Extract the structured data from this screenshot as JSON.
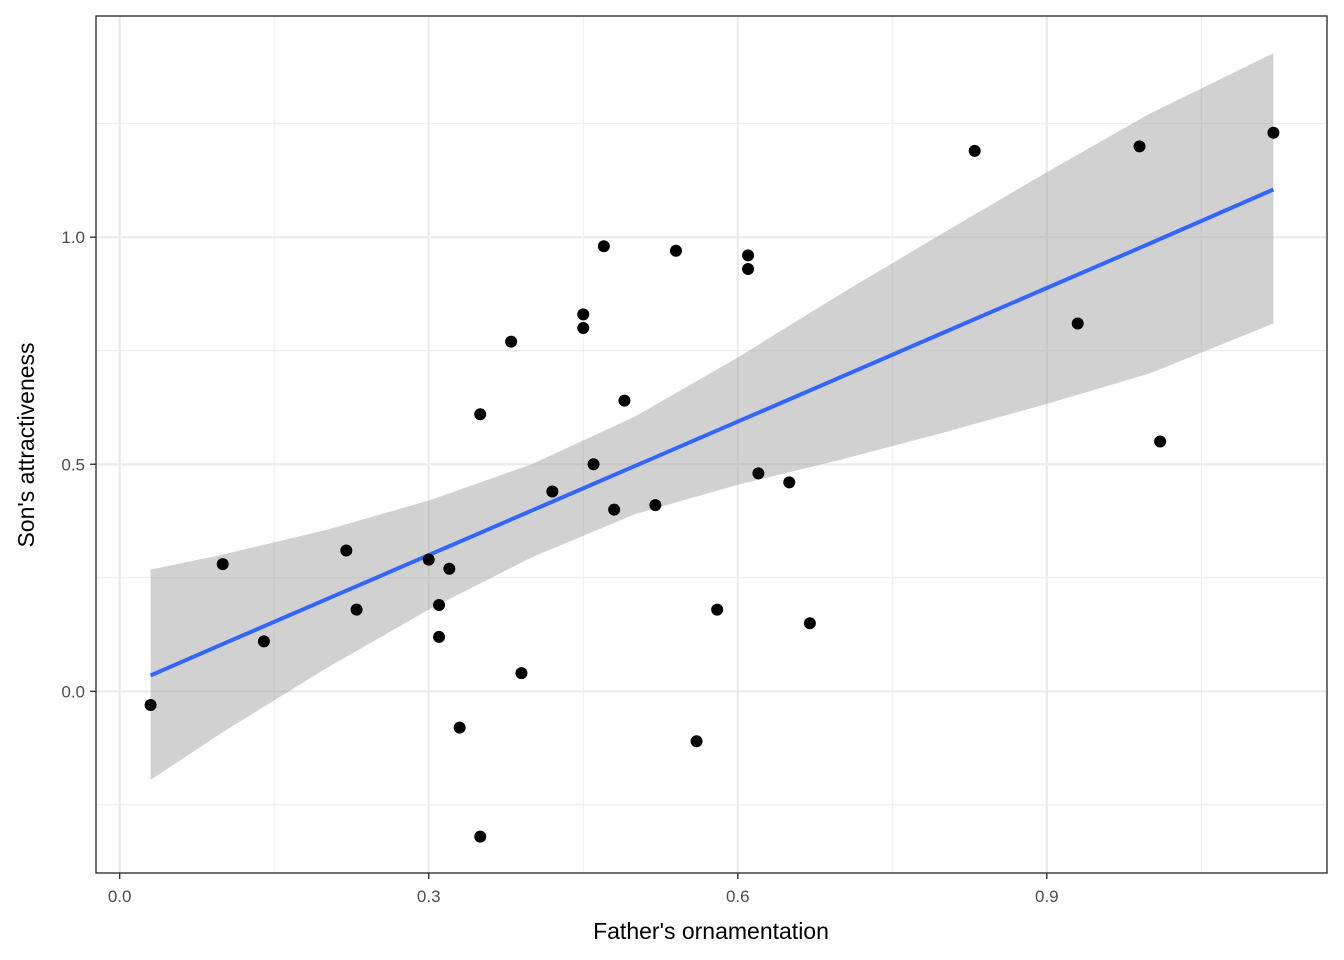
{
  "chart_data": {
    "type": "scatter",
    "title": "",
    "xlabel": "Father's ornamentation",
    "ylabel": "Son's attractiveness",
    "xlim": [
      -0.023,
      1.172
    ],
    "ylim": [
      -0.4,
      1.487
    ],
    "x_ticks": [
      0.0,
      0.3,
      0.6,
      0.9
    ],
    "x_tick_labels": [
      "0.0",
      "0.3",
      "0.6",
      "0.9"
    ],
    "x_minor": [
      0.15,
      0.45,
      0.75,
      1.05
    ],
    "y_ticks": [
      0.0,
      0.5,
      1.0
    ],
    "y_tick_labels": [
      "0.0",
      "0.5",
      "1.0"
    ],
    "y_minor": [
      -0.25,
      0.25,
      0.75,
      1.25
    ],
    "grid": true,
    "legend": "none",
    "points": [
      {
        "x": 0.03,
        "y": -0.03
      },
      {
        "x": 0.1,
        "y": 0.28
      },
      {
        "x": 0.14,
        "y": 0.11
      },
      {
        "x": 0.22,
        "y": 0.31
      },
      {
        "x": 0.23,
        "y": 0.18
      },
      {
        "x": 0.3,
        "y": 0.29
      },
      {
        "x": 0.31,
        "y": 0.19
      },
      {
        "x": 0.31,
        "y": 0.12
      },
      {
        "x": 0.32,
        "y": 0.27
      },
      {
        "x": 0.33,
        "y": -0.08
      },
      {
        "x": 0.35,
        "y": 0.61
      },
      {
        "x": 0.35,
        "y": -0.32
      },
      {
        "x": 0.38,
        "y": 0.77
      },
      {
        "x": 0.39,
        "y": 0.04
      },
      {
        "x": 0.42,
        "y": 0.44
      },
      {
        "x": 0.45,
        "y": 0.83
      },
      {
        "x": 0.45,
        "y": 0.8
      },
      {
        "x": 0.46,
        "y": 0.5
      },
      {
        "x": 0.47,
        "y": 0.98
      },
      {
        "x": 0.48,
        "y": 0.4
      },
      {
        "x": 0.49,
        "y": 0.64
      },
      {
        "x": 0.52,
        "y": 0.41
      },
      {
        "x": 0.54,
        "y": 0.97
      },
      {
        "x": 0.56,
        "y": -0.11
      },
      {
        "x": 0.58,
        "y": 0.18
      },
      {
        "x": 0.61,
        "y": 0.96
      },
      {
        "x": 0.61,
        "y": 0.93
      },
      {
        "x": 0.62,
        "y": 0.48
      },
      {
        "x": 0.65,
        "y": 0.46
      },
      {
        "x": 0.67,
        "y": 0.15
      },
      {
        "x": 0.83,
        "y": 1.19
      },
      {
        "x": 0.93,
        "y": 0.81
      },
      {
        "x": 0.99,
        "y": 1.2
      },
      {
        "x": 1.01,
        "y": 0.55
      },
      {
        "x": 1.12,
        "y": 1.23
      }
    ],
    "fit": {
      "method": "lm",
      "x": [
        0.03,
        0.1,
        0.2,
        0.3,
        0.4,
        0.5,
        0.6,
        0.7,
        0.8,
        0.9,
        1.0,
        1.12
      ],
      "y": [
        0.035,
        0.104,
        0.202,
        0.3,
        0.398,
        0.496,
        0.594,
        0.692,
        0.79,
        0.888,
        0.986,
        1.105
      ],
      "upper": [
        0.268,
        0.301,
        0.355,
        0.42,
        0.5,
        0.605,
        0.735,
        0.875,
        1.01,
        1.143,
        1.272,
        1.405
      ],
      "lower": [
        -0.195,
        -0.09,
        0.05,
        0.18,
        0.295,
        0.39,
        0.455,
        0.51,
        0.57,
        0.633,
        0.7,
        0.81
      ]
    },
    "colors": {
      "point": "#000000",
      "line": "#3366ff",
      "ribbon": "#999999",
      "grid": "#ebebeb",
      "panel_border": "#333333"
    }
  }
}
